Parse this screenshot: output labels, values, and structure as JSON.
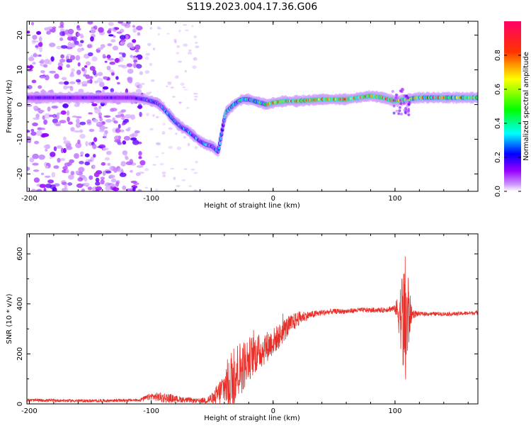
{
  "figure_title": "S119.2023.004.17.36.G06",
  "chart_data": [
    {
      "type": "heatmap",
      "title": "",
      "xlabel": "Height of straight line (km)",
      "ylabel": "Frequency (Hz)",
      "xlim": [
        -202,
        168
      ],
      "ylim": [
        -25,
        24
      ],
      "xticks": [
        -200,
        -100,
        0,
        100
      ],
      "yticks": [
        -20,
        -10,
        0,
        10,
        20
      ],
      "colorbar": {
        "label": "Normalized spectral amplitude",
        "range": [
          0,
          1
        ],
        "ticks": [
          "0.0",
          "0.2",
          "0.4",
          "0.6",
          "0.8"
        ],
        "colormap": [
          "#ffffff",
          "#9900ff",
          "#0000ff",
          "#00ffff",
          "#00ff00",
          "#ffff00",
          "#ff0000",
          "#ff0066"
        ]
      },
      "ridge": {
        "x": [
          -202,
          -190,
          -175,
          -160,
          -140,
          -125,
          -115,
          -105,
          -95,
          -90,
          -85,
          -80,
          -75,
          -70,
          -65,
          -60,
          -55,
          -50,
          -45,
          -40,
          -38,
          -35,
          -32,
          -28,
          -25,
          -20,
          -15,
          -10,
          -5,
          0,
          10,
          20,
          40,
          60,
          80,
          90,
          100,
          110,
          120,
          140,
          168
        ],
        "y": [
          2,
          2,
          2,
          2,
          2,
          2,
          2,
          1.5,
          0.5,
          -1,
          -3,
          -5,
          -6.5,
          -7.5,
          -9,
          -10.5,
          -11.5,
          -12,
          -13.5,
          -4,
          -2,
          -1,
          0,
          1,
          1.5,
          1.5,
          1,
          0.5,
          0,
          0.5,
          1,
          1,
          1.5,
          1.5,
          2.5,
          2,
          1,
          1.5,
          2,
          2,
          2
        ]
      }
    },
    {
      "type": "line",
      "title": "",
      "xlabel": "Height of straight line (km)",
      "ylabel": "SNR (10 * v/v)",
      "xlim": [
        -202,
        168
      ],
      "ylim": [
        0,
        680
      ],
      "xticks": [
        -200,
        -100,
        0,
        100
      ],
      "yticks": [
        0,
        200,
        400,
        600
      ],
      "series_color": "#e8302a",
      "envelope": {
        "x": [
          -202,
          -150,
          -110,
          -100,
          -90,
          -80,
          -70,
          -60,
          -50,
          -45,
          -40,
          -35,
          -30,
          -25,
          -20,
          -15,
          -10,
          -5,
          0,
          5,
          10,
          15,
          20,
          25,
          30,
          40,
          50,
          60,
          70,
          80,
          90,
          95,
          100,
          105,
          108,
          110,
          112,
          115,
          120,
          130,
          150,
          168
        ],
        "y": [
          15,
          12,
          15,
          30,
          25,
          20,
          15,
          12,
          20,
          40,
          70,
          90,
          130,
          150,
          180,
          200,
          210,
          230,
          250,
          270,
          300,
          320,
          340,
          350,
          355,
          365,
          370,
          370,
          375,
          375,
          375,
          380,
          380,
          360,
          300,
          340,
          360,
          360,
          360,
          360,
          360,
          365
        ],
        "noise_amplitude": {
          "x": [
            -202,
            -110,
            -100,
            -90,
            -80,
            -60,
            -50,
            -40,
            -35,
            -30,
            -20,
            -10,
            0,
            10,
            20,
            30,
            50,
            90,
            100,
            104,
            106,
            108,
            110,
            112,
            114,
            120,
            168
          ],
          "amp": [
            6,
            6,
            14,
            22,
            14,
            8,
            25,
            70,
            130,
            120,
            90,
            70,
            55,
            45,
            30,
            15,
            10,
            10,
            15,
            110,
            200,
            300,
            270,
            90,
            20,
            8,
            8
          ]
        }
      }
    }
  ]
}
